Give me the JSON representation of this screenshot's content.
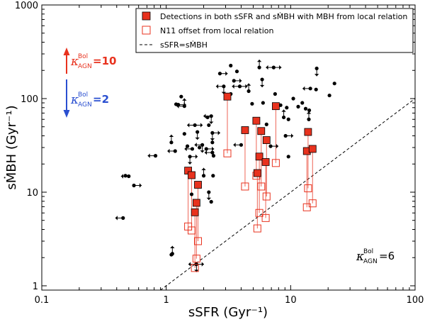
{
  "chart_data": {
    "type": "scatter",
    "xscale": "log",
    "yscale": "log",
    "xlim": [
      0.1,
      100
    ],
    "ylim": [
      0.9,
      1000
    ],
    "xlabel": "sSFR (Gyr⁻¹)",
    "ylabel": "sṀBH (Gyr⁻¹)",
    "x_ticks": [
      {
        "value": 0.1,
        "label": "0.1"
      },
      {
        "value": 1,
        "label": "1"
      },
      {
        "value": 10,
        "label": "10"
      },
      {
        "value": 100,
        "label": "100"
      }
    ],
    "y_ticks": [
      {
        "value": 1,
        "label": "1"
      },
      {
        "value": 10,
        "label": "10"
      },
      {
        "value": 100,
        "label": "100"
      },
      {
        "value": 1000,
        "label": "1000"
      }
    ],
    "legend": {
      "placement": "top-right",
      "entries": [
        {
          "label": "Detections in both sSFR and sṀBH with MBH from local relation",
          "marker": "filled-square",
          "color": "#e8321e"
        },
        {
          "label": "N11 offset from local relation",
          "marker": "open-square",
          "color": "#e8321e"
        },
        {
          "label": "sSFR=sṀBH",
          "marker": "dashed-line",
          "color": "#000000"
        }
      ]
    },
    "one_to_one_line": {
      "x": [
        0.9,
        100
      ],
      "y": [
        0.9,
        100
      ]
    },
    "annotations": {
      "red": {
        "kappa": "κ",
        "sup": "Bol",
        "sub": "AGN",
        "value": "=10",
        "color": "#e8321e"
      },
      "blue": {
        "kappa": "κ",
        "sup": "Bol",
        "sub": "AGN",
        "value": "=2",
        "color": "#2a4fd0"
      },
      "black": {
        "kappa": "κ",
        "sup": "Bol",
        "sub": "AGN",
        "value": "=6",
        "color": "#000000"
      }
    },
    "detections": [
      {
        "x": 3.1,
        "y": 105,
        "y_n11": 26
      },
      {
        "x": 4.3,
        "y": 46,
        "y_n11": 11.5
      },
      {
        "x": 5.3,
        "y": 58,
        "y_n11": 15
      },
      {
        "x": 5.8,
        "y": 45,
        "y_n11": 11.5
      },
      {
        "x": 6.4,
        "y": 36,
        "y_n11": 9
      },
      {
        "x": 5.6,
        "y": 24,
        "y_n11": 6
      },
      {
        "x": 5.4,
        "y": 16,
        "y_n11": 4.1
      },
      {
        "x": 6.3,
        "y": 21,
        "y_n11": 5.3
      },
      {
        "x": 7.6,
        "y": 83,
        "y_n11": 20.5
      },
      {
        "x": 1.5,
        "y": 17,
        "y_n11": 4.3
      },
      {
        "x": 1.6,
        "y": 15.2,
        "y_n11": 3.9
      },
      {
        "x": 1.8,
        "y": 12,
        "y_n11": 3.0
      },
      {
        "x": 1.75,
        "y": 7.7,
        "y_n11": 1.95
      },
      {
        "x": 1.7,
        "y": 6.1,
        "y_n11": 1.55
      },
      {
        "x": 13.8,
        "y": 44,
        "y_n11": 11
      },
      {
        "x": 13.5,
        "y": 27.5,
        "y_n11": 6.9
      },
      {
        "x": 15.0,
        "y": 29,
        "y_n11": 7.6
      }
    ],
    "black_points": [
      {
        "x": 0.47,
        "y": 15
      },
      {
        "x": 0.5,
        "y": 14.8,
        "arrows": [
          "left"
        ]
      },
      {
        "x": 0.55,
        "y": 11.8,
        "arrows": [
          "right"
        ]
      },
      {
        "x": 0.45,
        "y": 5.3,
        "arrows": [
          "left"
        ]
      },
      {
        "x": 0.82,
        "y": 24.5,
        "arrows": [
          "left"
        ]
      },
      {
        "x": 1.1,
        "y": 2.15
      },
      {
        "x": 1.12,
        "y": 2.2,
        "arrows": [
          "up"
        ]
      },
      {
        "x": 1.1,
        "y": 34,
        "arrows": [
          "up"
        ]
      },
      {
        "x": 1.18,
        "y": 27.5,
        "arrows": [
          "left"
        ]
      },
      {
        "x": 1.2,
        "y": 87
      },
      {
        "x": 1.25,
        "y": 86,
        "arrows": [
          "right"
        ]
      },
      {
        "x": 1.32,
        "y": 105
      },
      {
        "x": 1.4,
        "y": 83,
        "arrows": [
          "up",
          "left"
        ]
      },
      {
        "x": 1.4,
        "y": 42
      },
      {
        "x": 1.48,
        "y": 31
      },
      {
        "x": 1.55,
        "y": 24,
        "arrows": [
          "down",
          "right"
        ]
      },
      {
        "x": 1.7,
        "y": 52,
        "arrows": [
          "left",
          "right"
        ]
      },
      {
        "x": 1.62,
        "y": 29,
        "arrows": [
          "left"
        ]
      },
      {
        "x": 1.78,
        "y": 44,
        "arrows": [
          "down"
        ]
      },
      {
        "x": 1.85,
        "y": 30
      },
      {
        "x": 1.95,
        "y": 32,
        "arrows": [
          "down",
          "left"
        ]
      },
      {
        "x": 2.1,
        "y": 29,
        "arrows": [
          "right"
        ]
      },
      {
        "x": 2.15,
        "y": 63
      },
      {
        "x": 2.3,
        "y": 65,
        "arrows": [
          "down",
          "left"
        ]
      },
      {
        "x": 2.2,
        "y": 52
      },
      {
        "x": 2.35,
        "y": 43,
        "arrows": [
          "right",
          "down"
        ]
      },
      {
        "x": 2.35,
        "y": 34
      },
      {
        "x": 2.4,
        "y": 24.5
      },
      {
        "x": 2.38,
        "y": 15
      },
      {
        "x": 2.35,
        "y": 26.5,
        "arrows": [
          "left"
        ]
      },
      {
        "x": 2.0,
        "y": 15,
        "arrows": [
          "up"
        ]
      },
      {
        "x": 2.2,
        "y": 10,
        "arrows": [
          "down"
        ]
      },
      {
        "x": 2.3,
        "y": 7.9
      },
      {
        "x": 1.6,
        "y": 9.5
      },
      {
        "x": 1.75,
        "y": 1.7,
        "arrows": [
          "down"
        ]
      },
      {
        "x": 1.74,
        "y": 1.7,
        "arrows": [
          "left",
          "right"
        ]
      },
      {
        "x": 2.7,
        "y": 185,
        "arrows": [
          "right"
        ]
      },
      {
        "x": 2.9,
        "y": 135,
        "arrows": [
          "down",
          "left"
        ]
      },
      {
        "x": 3.3,
        "y": 225
      },
      {
        "x": 3.5,
        "y": 155,
        "arrows": [
          "right"
        ]
      },
      {
        "x": 3.7,
        "y": 195
      },
      {
        "x": 3.9,
        "y": 135,
        "arrows": [
          "left",
          "right"
        ]
      },
      {
        "x": 3.3,
        "y": 112
      },
      {
        "x": 4.0,
        "y": 32,
        "arrows": [
          "left"
        ]
      },
      {
        "x": 4.6,
        "y": 120,
        "arrows": [
          "up"
        ]
      },
      {
        "x": 4.9,
        "y": 88
      },
      {
        "x": 5.6,
        "y": 215,
        "arrows": [
          "up"
        ]
      },
      {
        "x": 5.9,
        "y": 160,
        "arrows": [
          "down"
        ]
      },
      {
        "x": 6.0,
        "y": 90
      },
      {
        "x": 6.4,
        "y": 53
      },
      {
        "x": 6.9,
        "y": 31,
        "arrows": [
          "right"
        ]
      },
      {
        "x": 7.3,
        "y": 215,
        "arrows": [
          "left",
          "right"
        ]
      },
      {
        "x": 7.5,
        "y": 112
      },
      {
        "x": 8.3,
        "y": 85
      },
      {
        "x": 8.8,
        "y": 63,
        "arrows": [
          "up"
        ]
      },
      {
        "x": 9.3,
        "y": 80
      },
      {
        "x": 9.6,
        "y": 60
      },
      {
        "x": 9.1,
        "y": 40,
        "arrows": [
          "right"
        ]
      },
      {
        "x": 9.6,
        "y": 24
      },
      {
        "x": 10.5,
        "y": 100
      },
      {
        "x": 11.5,
        "y": 82
      },
      {
        "x": 12.4,
        "y": 90
      },
      {
        "x": 13.2,
        "y": 78
      },
      {
        "x": 14.1,
        "y": 75
      },
      {
        "x": 14.0,
        "y": 60,
        "arrows": [
          "up"
        ]
      },
      {
        "x": 14.4,
        "y": 128,
        "arrows": [
          "left"
        ]
      },
      {
        "x": 16.0,
        "y": 125
      },
      {
        "x": 16.2,
        "y": 210,
        "arrows": [
          "down"
        ]
      },
      {
        "x": 20.5,
        "y": 108
      },
      {
        "x": 22.5,
        "y": 145
      }
    ]
  }
}
